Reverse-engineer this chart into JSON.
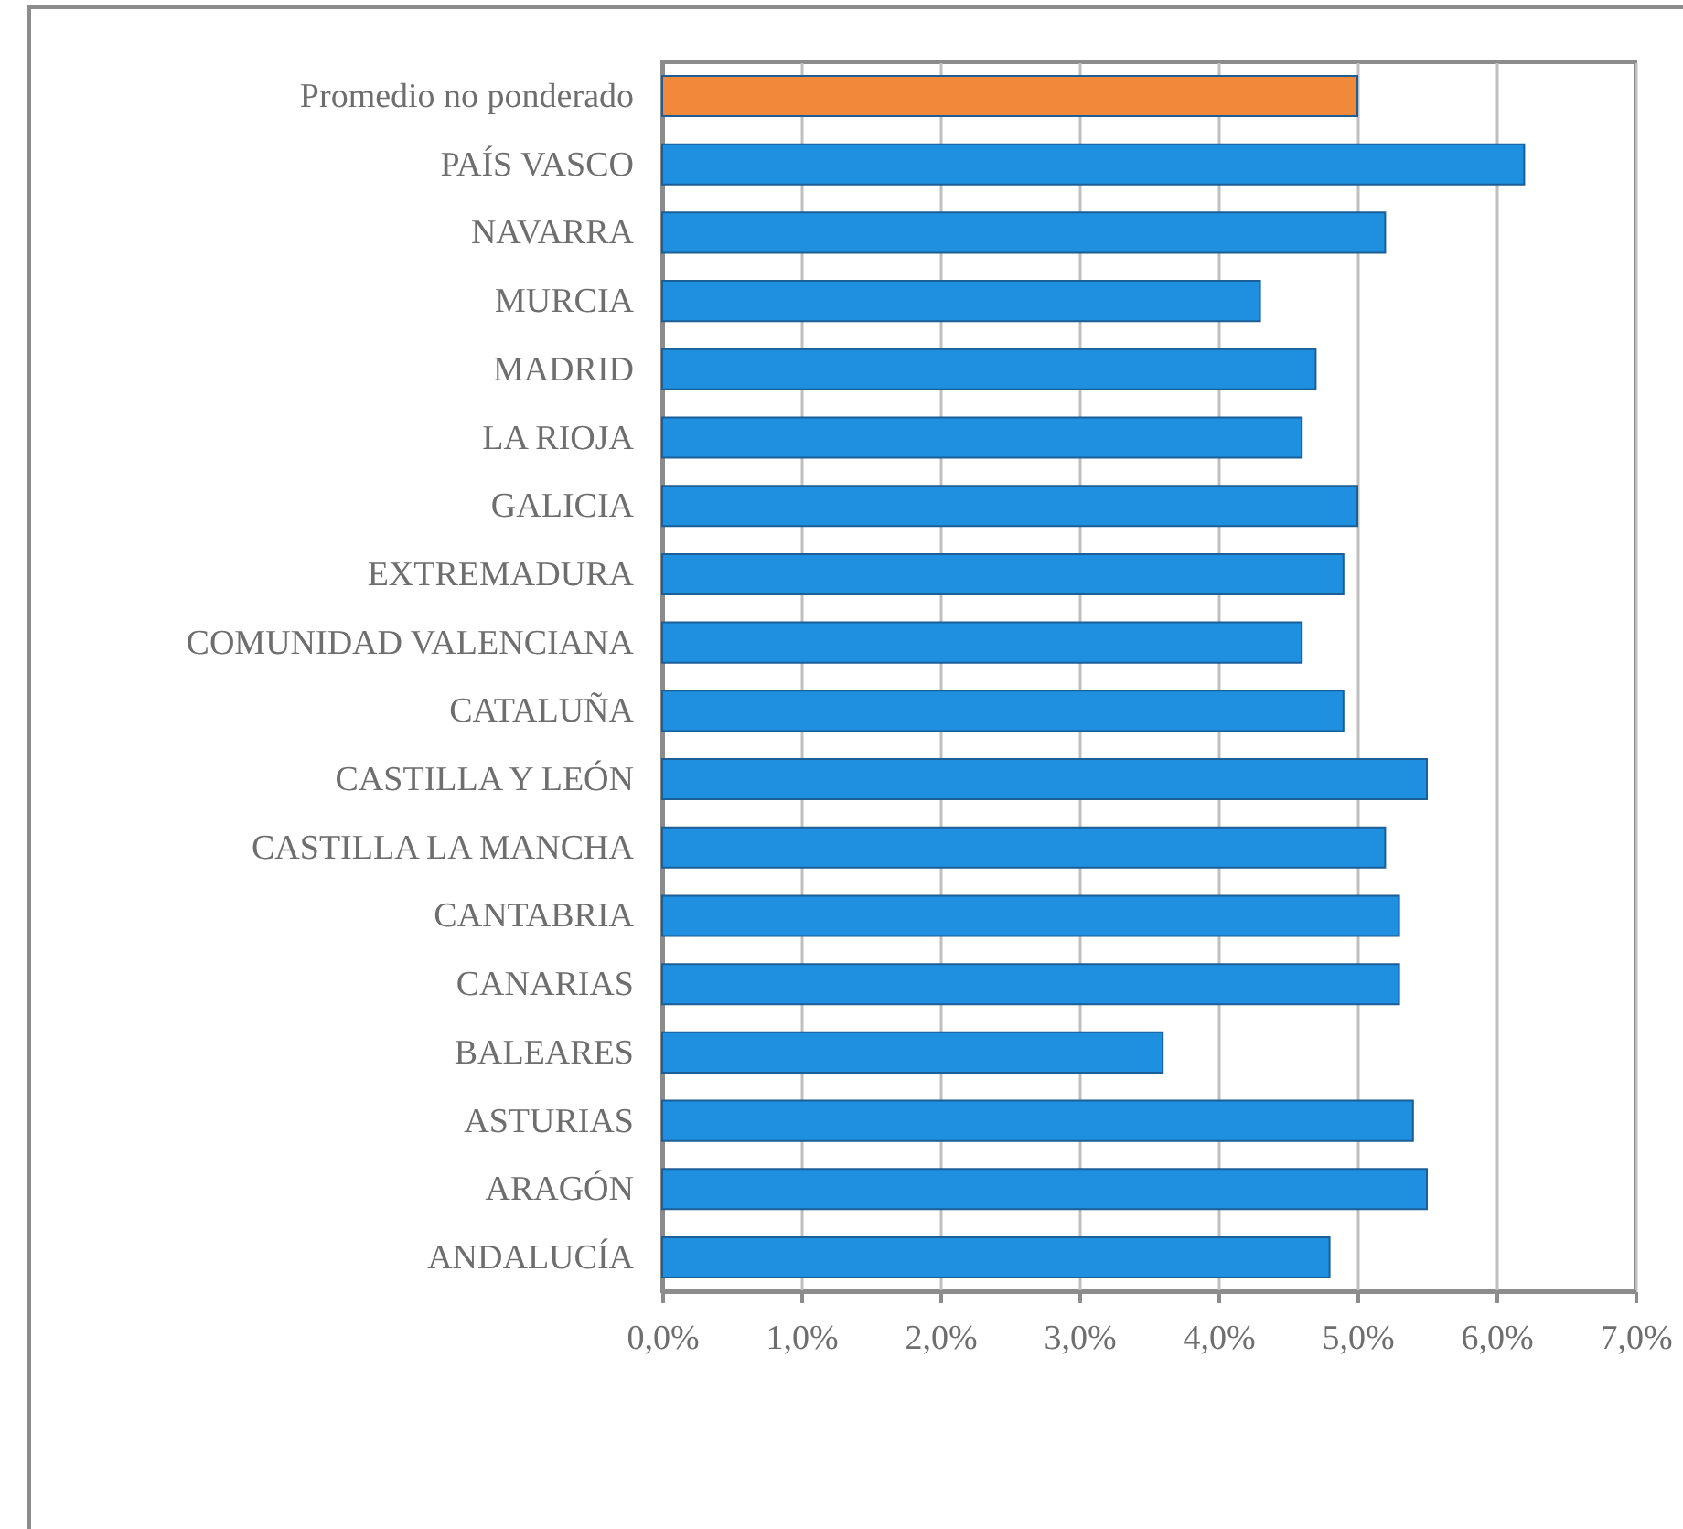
{
  "chart_data": {
    "type": "bar",
    "orientation": "horizontal",
    "categories": [
      "Promedio no ponderado",
      "PAÍS VASCO",
      "NAVARRA",
      "MURCIA",
      "MADRID",
      "LA RIOJA",
      "GALICIA",
      "EXTREMADURA",
      "COMUNIDAD VALENCIANA",
      "CATALUÑA",
      "CASTILLA Y LEÓN",
      "CASTILLA LA MANCHA",
      "CANTABRIA",
      "CANARIAS",
      "BALEARES",
      "ASTURIAS",
      "ARAGÓN",
      "ANDALUCÍA"
    ],
    "values": [
      5.0,
      6.2,
      5.2,
      4.3,
      4.7,
      4.6,
      5.0,
      4.9,
      4.6,
      4.9,
      5.5,
      5.2,
      5.3,
      5.3,
      3.6,
      5.4,
      5.5,
      4.8
    ],
    "colors": [
      "#f08a3a",
      "#1f8fe0",
      "#1f8fe0",
      "#1f8fe0",
      "#1f8fe0",
      "#1f8fe0",
      "#1f8fe0",
      "#1f8fe0",
      "#1f8fe0",
      "#1f8fe0",
      "#1f8fe0",
      "#1f8fe0",
      "#1f8fe0",
      "#1f8fe0",
      "#1f8fe0",
      "#1f8fe0",
      "#1f8fe0",
      "#1f8fe0"
    ],
    "xlim": [
      0,
      7
    ],
    "xticks": [
      {
        "value": 0,
        "label": "0,0%"
      },
      {
        "value": 1,
        "label": "1,0%"
      },
      {
        "value": 2,
        "label": "2,0%"
      },
      {
        "value": 3,
        "label": "3,0%"
      },
      {
        "value": 4,
        "label": "4,0%"
      },
      {
        "value": 5,
        "label": "5,0%"
      },
      {
        "value": 6,
        "label": "6,0%"
      },
      {
        "value": 7,
        "label": "7,0%"
      }
    ],
    "grid": "x"
  }
}
